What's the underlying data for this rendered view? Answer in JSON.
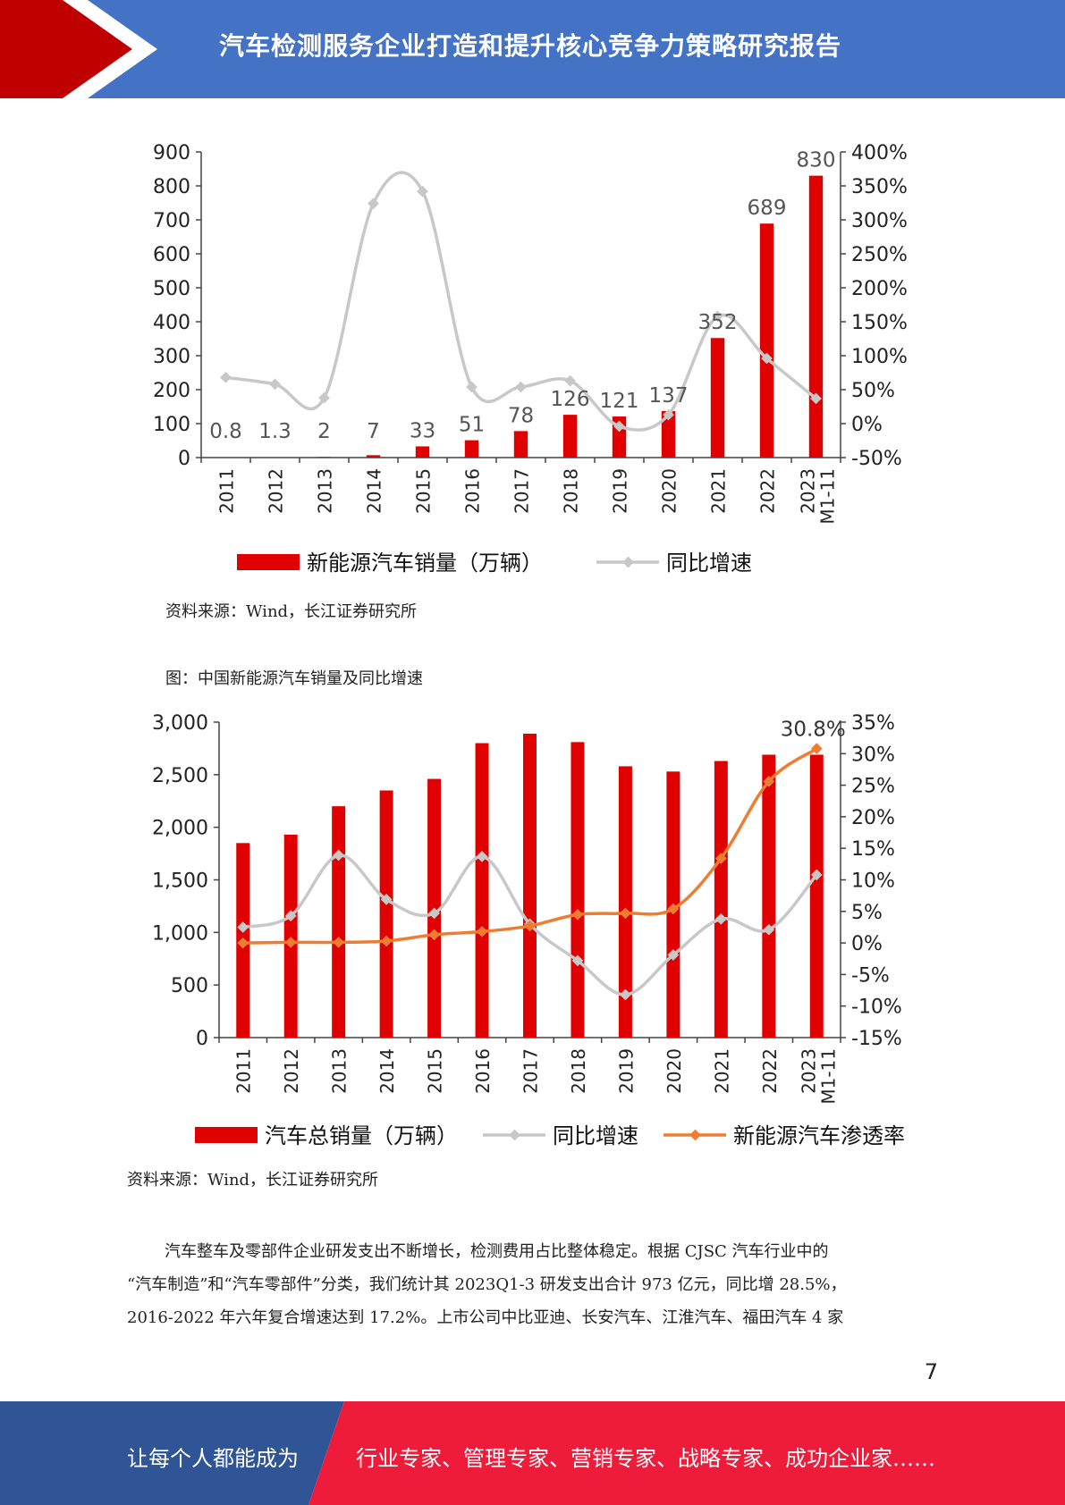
{
  "header": {
    "title": "汽车检测服务企业打造和提升核心竞争力策略研究报告",
    "brand_color": "#4472c4",
    "accent_color": "#c00000"
  },
  "chart1": {
    "source": "资料来源：Wind，长江证券研究所"
  },
  "chart2": {
    "caption": "图：中国新能源汽车销量及同比增速",
    "source": "资料来源：Wind，长江证券研究所"
  },
  "chart_data": [
    {
      "type": "bar",
      "categories": [
        "2011",
        "2012",
        "2013",
        "2014",
        "2015",
        "2016",
        "2017",
        "2018",
        "2019",
        "2020",
        "2021",
        "2022",
        "2023 M1-11"
      ],
      "series": [
        {
          "name": "新能源汽车销量（万辆）",
          "type": "bar",
          "axis": "left",
          "color": "#e00000",
          "values": [
            0.8,
            1.3,
            2,
            7,
            33,
            51,
            78,
            126,
            121,
            137,
            352,
            689,
            830
          ],
          "labels": [
            "0.8",
            "1.3",
            "2",
            "7",
            "33",
            "51",
            "78",
            "126",
            "121",
            "137",
            "352",
            "689",
            "830"
          ]
        },
        {
          "name": "同比增速",
          "type": "line",
          "axis": "right",
          "color": "#c8c8c8",
          "values": [
            68,
            58,
            38,
            324,
            342,
            54,
            54,
            63,
            -4,
            13,
            158,
            96,
            37
          ]
        }
      ],
      "ylim_left": [
        0,
        900
      ],
      "left_ticks": [
        "0",
        "100",
        "200",
        "300",
        "400",
        "500",
        "600",
        "700",
        "800",
        "900"
      ],
      "ylim_right": [
        -50,
        400
      ],
      "right_ticks": [
        "-50%",
        "0%",
        "50%",
        "100%",
        "150%",
        "200%",
        "250%",
        "300%",
        "350%",
        "400%"
      ],
      "legend": "bottom",
      "grid": false
    },
    {
      "type": "bar",
      "categories": [
        "2011",
        "2012",
        "2013",
        "2014",
        "2015",
        "2016",
        "2017",
        "2018",
        "2019",
        "2020",
        "2021",
        "2022",
        "2023 M1-11"
      ],
      "series": [
        {
          "name": "汽车总销量（万辆）",
          "type": "bar",
          "axis": "left",
          "color": "#e00000",
          "values": [
            1850,
            1930,
            2200,
            2350,
            2460,
            2800,
            2890,
            2810,
            2580,
            2530,
            2630,
            2690,
            2690
          ]
        },
        {
          "name": "同比增速",
          "type": "line",
          "axis": "right",
          "color": "#c8c8c8",
          "values": [
            2.5,
            4.3,
            13.9,
            6.9,
            4.7,
            13.7,
            3.0,
            -2.8,
            -8.2,
            -1.9,
            3.8,
            2.1,
            10.8
          ]
        },
        {
          "name": "新能源汽车渗透率",
          "type": "line",
          "axis": "right",
          "color": "#ed7d31",
          "values": [
            0.0,
            0.1,
            0.1,
            0.3,
            1.3,
            1.8,
            2.7,
            4.5,
            4.7,
            5.4,
            13.4,
            25.6,
            30.8
          ],
          "last_label": "30.8%"
        }
      ],
      "ylim_left": [
        0,
        3000
      ],
      "left_ticks": [
        "0",
        "500",
        "1,000",
        "1,500",
        "2,000",
        "2,500",
        "3,000"
      ],
      "ylim_right": [
        -15,
        35
      ],
      "right_ticks": [
        "-15%",
        "-10%",
        "-5%",
        "0%",
        "5%",
        "10%",
        "15%",
        "20%",
        "25%",
        "30%",
        "35%"
      ],
      "legend": "bottom",
      "grid": false
    }
  ],
  "body_text": [
    "汽车整车及零部件企业研发支出不断增长，检测费用占比整体稳定。根据 CJSC 汽车行业中的",
    "“汽车制造”和“汽车零部件”分类，我们统计其 2023Q1-3 研发支出合计 973 亿元，同比增 28.5%，",
    "2016-2022 年六年复合增速达到 17.2%。上市公司中比亚迪、长安汽车、江淮汽车、福田汽车 4 家"
  ],
  "page_number": "7",
  "footer": {
    "left": "让每个人都能成为",
    "right": "行业专家、管理专家、营销专家、战略专家、成功企业家……",
    "left_color": "#2f5597",
    "right_color": "#ee1c3a"
  }
}
